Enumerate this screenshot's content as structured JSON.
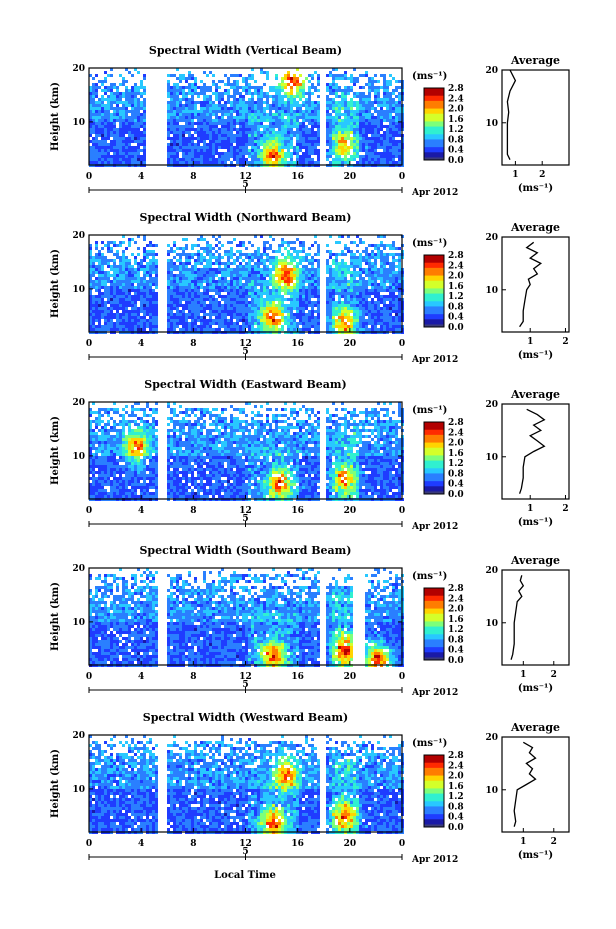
{
  "figure": {
    "bottom_xlabel": "Local Time",
    "date_label": "Apr 2012",
    "day_label": "5",
    "height_label": "Height (km)",
    "cbar_unit": "(ms⁻¹)",
    "avg_title": "Average",
    "avg_xlabel": "(ms⁻¹)"
  },
  "colors": {
    "jet": [
      "#1a1aa6",
      "#1f3cff",
      "#2a7fff",
      "#28c8ff",
      "#30f0d0",
      "#7dff7a",
      "#d4ff2a",
      "#ffd400",
      "#ff7d00",
      "#ff2a00",
      "#b30000"
    ],
    "low_band": "#3a3a7a",
    "background": "#ffffff"
  },
  "chart_data": [
    {
      "type": "heatmap",
      "title": "Spectral Width (Vertical Beam)",
      "xlabel": "Local Time",
      "ylabel": "Height (km)",
      "xlim": [
        0,
        24
      ],
      "ylim": [
        2,
        20
      ],
      "x_ticks": [
        "0",
        "4",
        "8",
        "12",
        "16",
        "20",
        "0"
      ],
      "y_ticks": [
        "10",
        "20"
      ],
      "colorbar": {
        "label": "(ms⁻¹)",
        "ticks": [
          "0.0",
          "0.4",
          "0.8",
          "1.2",
          "1.6",
          "2.0",
          "2.4",
          "2.8"
        ],
        "range": [
          0,
          2.8
        ]
      },
      "data_gaps_hours": [
        [
          4.3,
          5.9
        ],
        [
          17.6,
          18.0
        ]
      ],
      "enhanced_regions": [
        {
          "time": 14,
          "height": 4,
          "value": 2.4
        },
        {
          "time": 15.5,
          "height": 18,
          "value": 2.6
        },
        {
          "time": 19.5,
          "height": 6,
          "value": 2.0
        }
      ],
      "average_profile": {
        "title": "Average",
        "xlabel": "(ms⁻¹)",
        "x_ticks": [
          "1",
          "2"
        ],
        "xlim": [
          0.5,
          3.0
        ],
        "y_ticks": [
          "10",
          "20"
        ],
        "height": [
          3,
          4,
          6,
          8,
          10,
          12,
          14,
          16,
          18,
          19,
          20
        ],
        "width": [
          0.8,
          0.7,
          0.7,
          0.7,
          0.7,
          0.75,
          0.7,
          0.8,
          1.0,
          0.9,
          0.8
        ]
      }
    },
    {
      "type": "heatmap",
      "title": "Spectral Width (Northward Beam)",
      "xlabel": "Local Time",
      "ylabel": "Height (km)",
      "xlim": [
        0,
        24
      ],
      "ylim": [
        2,
        20
      ],
      "x_ticks": [
        "0",
        "4",
        "8",
        "12",
        "16",
        "20",
        "0"
      ],
      "y_ticks": [
        "10",
        "20"
      ],
      "colorbar": {
        "label": "(ms⁻¹)",
        "ticks": [
          "0.0",
          "0.4",
          "0.8",
          "1.2",
          "1.6",
          "2.0",
          "2.4",
          "2.8"
        ],
        "range": [
          0,
          2.8
        ]
      },
      "data_gaps_hours": [
        [
          5.1,
          5.9
        ],
        [
          17.6,
          18.0
        ]
      ],
      "enhanced_regions": [
        {
          "time": 14,
          "height": 5,
          "value": 2.4
        },
        {
          "time": 15,
          "height": 13,
          "value": 2.5
        },
        {
          "time": 19.5,
          "height": 4,
          "value": 2.2
        }
      ],
      "average_profile": {
        "title": "Average",
        "xlabel": "(ms⁻¹)",
        "x_ticks": [
          "1",
          "2"
        ],
        "xlim": [
          0.2,
          2.1
        ],
        "y_ticks": [
          "10",
          "20"
        ],
        "height": [
          3,
          4,
          6,
          8,
          10,
          11,
          12,
          13,
          14,
          15,
          16,
          17,
          18,
          19
        ],
        "width": [
          0.7,
          0.8,
          0.8,
          0.85,
          0.9,
          1.0,
          0.95,
          1.2,
          1.1,
          1.3,
          1.0,
          1.2,
          0.9,
          1.1
        ]
      }
    },
    {
      "type": "heatmap",
      "title": "Spectral Width (Eastward Beam)",
      "xlabel": "Local Time",
      "ylabel": "Height (km)",
      "xlim": [
        0,
        24
      ],
      "ylim": [
        2,
        20
      ],
      "x_ticks": [
        "0",
        "4",
        "8",
        "12",
        "16",
        "20",
        "0"
      ],
      "y_ticks": [
        "10",
        "20"
      ],
      "colorbar": {
        "label": "(ms⁻¹)",
        "ticks": [
          "0.0",
          "0.4",
          "0.8",
          "1.2",
          "1.6",
          "2.0",
          "2.4",
          "2.8"
        ],
        "range": [
          0,
          2.8
        ]
      },
      "data_gaps_hours": [
        [
          5.1,
          5.9
        ],
        [
          17.6,
          18.0
        ]
      ],
      "enhanced_regions": [
        {
          "time": 14.5,
          "height": 5,
          "value": 2.4
        },
        {
          "time": 19.5,
          "height": 6,
          "value": 2.2
        },
        {
          "time": 3.5,
          "height": 12,
          "value": 2.3
        }
      ],
      "average_profile": {
        "title": "Average",
        "xlabel": "(ms⁻¹)",
        "x_ticks": [
          "1",
          "2"
        ],
        "xlim": [
          0.2,
          2.1
        ],
        "y_ticks": [
          "10",
          "20"
        ],
        "height": [
          3,
          4,
          6,
          8,
          10,
          11,
          12,
          13,
          14,
          15,
          16,
          17,
          18,
          19
        ],
        "width": [
          0.7,
          0.75,
          0.8,
          0.8,
          0.85,
          1.1,
          1.4,
          1.2,
          1.0,
          1.3,
          1.1,
          1.4,
          1.2,
          0.9
        ]
      }
    },
    {
      "type": "heatmap",
      "title": "Spectral Width (Southward Beam)",
      "xlabel": "Local Time",
      "ylabel": "Height (km)",
      "xlim": [
        0,
        24
      ],
      "ylim": [
        2,
        20
      ],
      "x_ticks": [
        "0",
        "4",
        "8",
        "12",
        "16",
        "20",
        "0"
      ],
      "y_ticks": [
        "10",
        "20"
      ],
      "colorbar": {
        "label": "(ms⁻¹)",
        "ticks": [
          "0.0",
          "0.4",
          "0.8",
          "1.2",
          "1.6",
          "2.0",
          "2.4",
          "2.8"
        ],
        "range": [
          0,
          2.8
        ]
      },
      "data_gaps_hours": [
        [
          5.1,
          5.9
        ],
        [
          17.6,
          18.0
        ],
        [
          20.2,
          21.0
        ]
      ],
      "enhanced_regions": [
        {
          "time": 14,
          "height": 4,
          "value": 2.5
        },
        {
          "time": 19.5,
          "height": 5,
          "value": 2.6
        },
        {
          "time": 22,
          "height": 3,
          "value": 2.8
        }
      ],
      "average_profile": {
        "title": "Average",
        "xlabel": "(ms⁻¹)",
        "x_ticks": [
          "1",
          "2"
        ],
        "xlim": [
          0.3,
          2.5
        ],
        "y_ticks": [
          "10",
          "20"
        ],
        "height": [
          3,
          4,
          6,
          8,
          10,
          12,
          14,
          15,
          16,
          17,
          18,
          19
        ],
        "width": [
          0.6,
          0.65,
          0.7,
          0.7,
          0.7,
          0.75,
          0.8,
          0.95,
          0.85,
          1.0,
          0.9,
          0.95
        ]
      }
    },
    {
      "type": "heatmap",
      "title": "Spectral Width (Westward Beam)",
      "xlabel": "Local Time",
      "ylabel": "Height (km)",
      "xlim": [
        0,
        24
      ],
      "ylim": [
        2,
        20
      ],
      "x_ticks": [
        "0",
        "4",
        "8",
        "12",
        "16",
        "20",
        "0"
      ],
      "y_ticks": [
        "10",
        "20"
      ],
      "colorbar": {
        "label": "(ms⁻¹)",
        "ticks": [
          "0.0",
          "0.4",
          "0.8",
          "1.2",
          "1.6",
          "2.0",
          "2.4",
          "2.8"
        ],
        "range": [
          0,
          2.8
        ]
      },
      "data_gaps_hours": [
        [
          5.1,
          5.9
        ],
        [
          17.6,
          18.0
        ]
      ],
      "enhanced_regions": [
        {
          "time": 14,
          "height": 4,
          "value": 2.5
        },
        {
          "time": 19.5,
          "height": 5,
          "value": 2.4
        },
        {
          "time": 15,
          "height": 13,
          "value": 2.3
        }
      ],
      "average_profile": {
        "title": "Average",
        "xlabel": "(ms⁻¹)",
        "x_ticks": [
          "1",
          "2"
        ],
        "xlim": [
          0.3,
          2.5
        ],
        "y_ticks": [
          "10",
          "20"
        ],
        "height": [
          3,
          4,
          6,
          8,
          10,
          11,
          12,
          13,
          14,
          15,
          16,
          17,
          18,
          19
        ],
        "width": [
          0.7,
          0.75,
          0.7,
          0.75,
          0.8,
          1.1,
          1.4,
          1.2,
          1.3,
          1.1,
          1.4,
          1.2,
          1.3,
          1.0
        ]
      }
    }
  ]
}
